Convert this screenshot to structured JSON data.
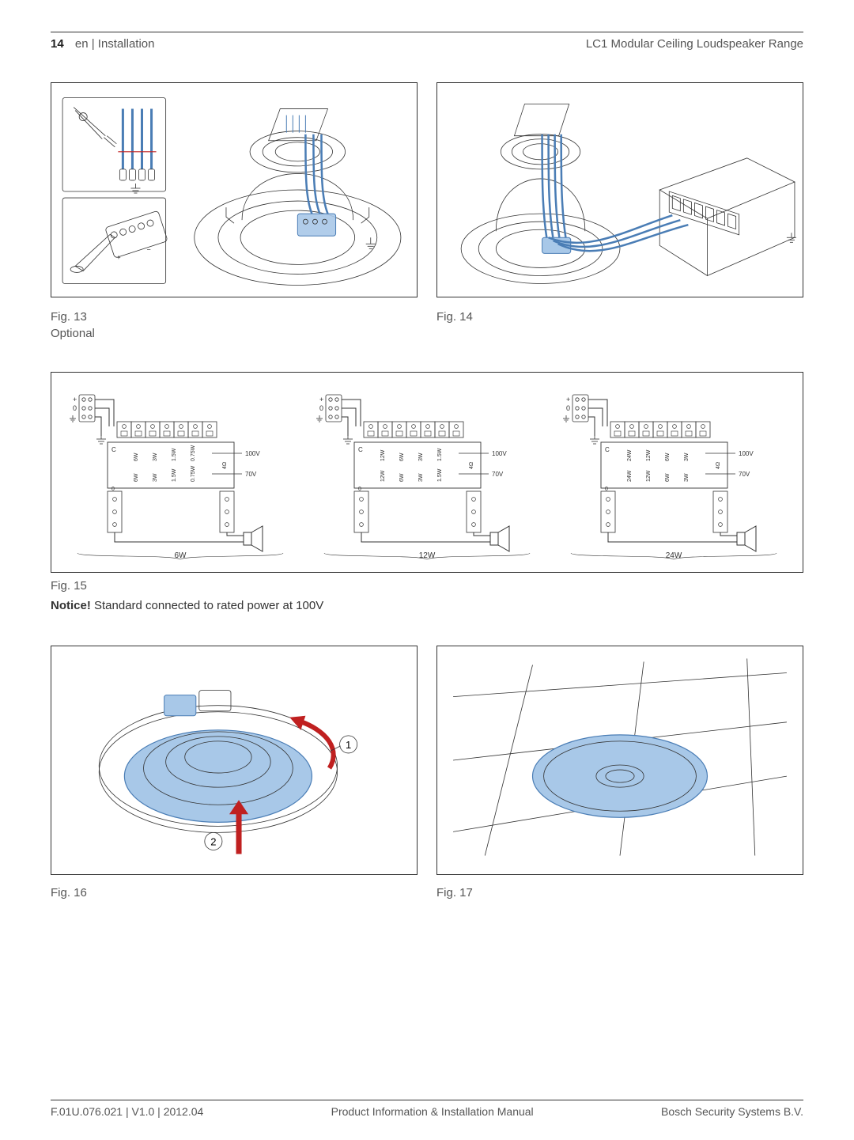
{
  "header": {
    "page_num": "14",
    "lang_section": "en | Installation",
    "product": "LC1 Modular Ceiling Loudspeaker Range"
  },
  "fig13": {
    "caption": "Fig. 13",
    "sub": "Optional"
  },
  "fig14": {
    "caption": "Fig. 14"
  },
  "fig15": {
    "caption": "Fig. 15",
    "notice_bold": "Notice!",
    "notice_text": " Standard connected to rated power at 100V",
    "diagrams": [
      {
        "label": "6W",
        "terminals_plus": "+",
        "terminals_zero": "0",
        "top_row": [
          "6W",
          "3W",
          "1.5W",
          "0.75W"
        ],
        "bot_row": [
          "6W",
          "3W",
          "1.5W",
          "0.75W"
        ],
        "v_top": "100V",
        "v_bot": "70V",
        "ohm": "4Ω"
      },
      {
        "label": "12W",
        "terminals_plus": "+",
        "terminals_zero": "0",
        "top_row": [
          "12W",
          "6W",
          "3W",
          "1.5W"
        ],
        "bot_row": [
          "12W",
          "6W",
          "3W",
          "1.5W"
        ],
        "v_top": "100V",
        "v_bot": "70V",
        "ohm": "4Ω"
      },
      {
        "label": "24W",
        "terminals_plus": "+",
        "terminals_zero": "0",
        "top_row": [
          "24W",
          "12W",
          "6W",
          "3W"
        ],
        "bot_row": [
          "24W",
          "12W",
          "6W",
          "3W"
        ],
        "v_top": "100V",
        "v_bot": "70V",
        "ohm": "4Ω"
      }
    ]
  },
  "fig16": {
    "caption": "Fig. 16",
    "step1": "1",
    "step2": "2"
  },
  "fig17": {
    "caption": "Fig. 17"
  },
  "footer": {
    "left": "F.01U.076.021 | V1.0 | 2012.04",
    "center": "Product Information & Installation Manual",
    "right": "Bosch Security Systems B.V."
  },
  "colors": {
    "blue_fill": "#a8c8e8",
    "blue_stroke": "#4a7db5",
    "red": "#c02020",
    "text": "#333333"
  }
}
